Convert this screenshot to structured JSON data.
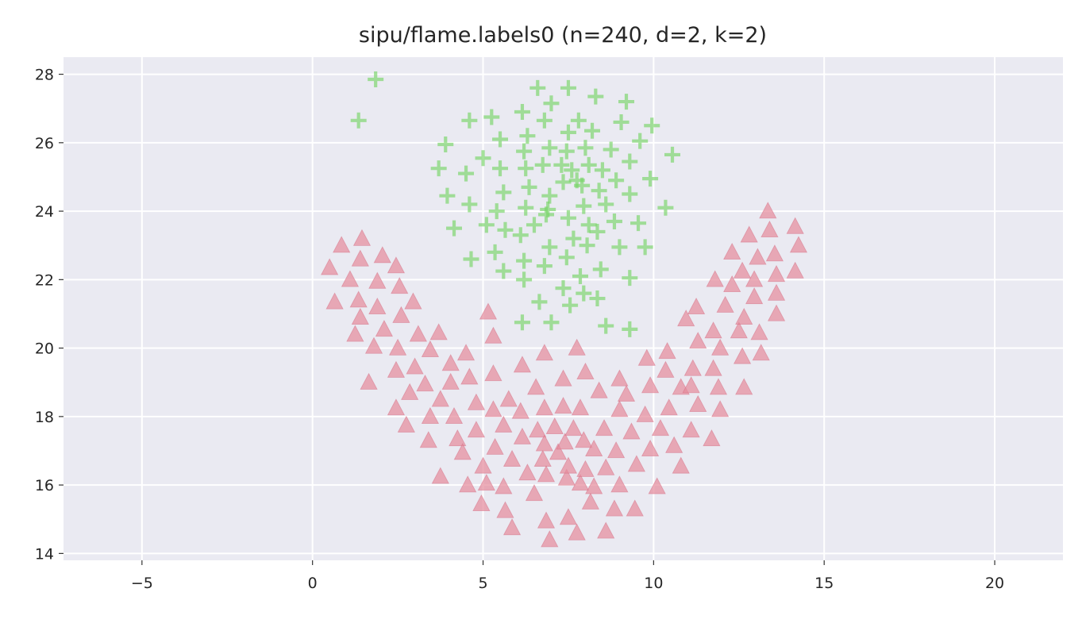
{
  "chart_data": {
    "type": "scatter",
    "title": "sipu/flame.labels0 (n=240, d=2, k=2)",
    "xlabel": "",
    "ylabel": "",
    "xlim": [
      -7.3,
      22.0
    ],
    "ylim": [
      13.8,
      28.5
    ],
    "xticks": [
      -5,
      0,
      5,
      10,
      15,
      20
    ],
    "xtick_labels": [
      "−5",
      "0",
      "5",
      "10",
      "15",
      "20"
    ],
    "yticks": [
      14,
      16,
      18,
      20,
      22,
      24,
      26,
      28
    ],
    "ytick_labels": [
      "14",
      "16",
      "18",
      "20",
      "22",
      "24",
      "26",
      "28"
    ],
    "grid": true,
    "background_color": "#eaeaf2",
    "series": [
      {
        "marker": "plus",
        "color": "#77d466",
        "points": [
          [
            1.85,
            27.85
          ],
          [
            1.35,
            26.65
          ],
          [
            6.6,
            27.6
          ],
          [
            7.5,
            27.6
          ],
          [
            7.0,
            27.15
          ],
          [
            8.3,
            27.35
          ],
          [
            9.2,
            27.2
          ],
          [
            4.6,
            26.65
          ],
          [
            5.25,
            26.75
          ],
          [
            6.15,
            26.9
          ],
          [
            6.8,
            26.65
          ],
          [
            7.8,
            26.65
          ],
          [
            8.2,
            26.35
          ],
          [
            9.05,
            26.6
          ],
          [
            9.95,
            26.5
          ],
          [
            3.9,
            25.95
          ],
          [
            5.5,
            26.1
          ],
          [
            6.3,
            26.2
          ],
          [
            7.5,
            26.3
          ],
          [
            9.6,
            26.05
          ],
          [
            10.55,
            25.65
          ],
          [
            5.0,
            25.55
          ],
          [
            6.2,
            25.75
          ],
          [
            6.95,
            25.85
          ],
          [
            7.45,
            25.75
          ],
          [
            8.0,
            25.85
          ],
          [
            8.75,
            25.8
          ],
          [
            3.7,
            25.25
          ],
          [
            4.5,
            25.1
          ],
          [
            5.5,
            25.25
          ],
          [
            6.25,
            25.25
          ],
          [
            6.75,
            25.35
          ],
          [
            7.3,
            25.35
          ],
          [
            7.6,
            25.2
          ],
          [
            8.1,
            25.35
          ],
          [
            8.5,
            25.2
          ],
          [
            9.3,
            25.45
          ],
          [
            9.9,
            24.95
          ],
          [
            7.9,
            24.75
          ],
          [
            3.95,
            24.45
          ],
          [
            4.6,
            24.2
          ],
          [
            5.6,
            24.55
          ],
          [
            6.35,
            24.7
          ],
          [
            6.95,
            24.45
          ],
          [
            7.35,
            24.85
          ],
          [
            7.75,
            24.9
          ],
          [
            8.4,
            24.6
          ],
          [
            8.9,
            24.9
          ],
          [
            9.3,
            24.5
          ],
          [
            10.35,
            24.1
          ],
          [
            5.4,
            24.0
          ],
          [
            6.25,
            24.1
          ],
          [
            6.9,
            24.05
          ],
          [
            7.5,
            23.8
          ],
          [
            7.95,
            24.15
          ],
          [
            8.6,
            24.2
          ],
          [
            4.15,
            23.5
          ],
          [
            5.1,
            23.6
          ],
          [
            5.65,
            23.45
          ],
          [
            6.1,
            23.3
          ],
          [
            6.5,
            23.6
          ],
          [
            6.85,
            23.9
          ],
          [
            7.65,
            23.2
          ],
          [
            8.1,
            23.6
          ],
          [
            8.85,
            23.7
          ],
          [
            9.55,
            23.65
          ],
          [
            8.35,
            23.4
          ],
          [
            4.65,
            22.6
          ],
          [
            5.35,
            22.8
          ],
          [
            6.2,
            22.55
          ],
          [
            6.95,
            22.95
          ],
          [
            7.45,
            22.65
          ],
          [
            8.05,
            23.0
          ],
          [
            9.0,
            22.95
          ],
          [
            9.75,
            22.95
          ],
          [
            5.6,
            22.25
          ],
          [
            6.2,
            22.0
          ],
          [
            6.8,
            22.4
          ],
          [
            7.35,
            21.75
          ],
          [
            7.85,
            22.1
          ],
          [
            8.45,
            22.3
          ],
          [
            9.3,
            22.05
          ],
          [
            6.65,
            21.35
          ],
          [
            7.55,
            21.25
          ],
          [
            7.95,
            21.6
          ],
          [
            8.35,
            21.45
          ],
          [
            6.15,
            20.75
          ],
          [
            7.0,
            20.75
          ],
          [
            8.6,
            20.65
          ],
          [
            9.3,
            20.55
          ]
        ]
      },
      {
        "marker": "triangle",
        "color": "#e58a9b",
        "points": [
          [
            0.5,
            22.35
          ],
          [
            0.85,
            23.0
          ],
          [
            1.1,
            22.0
          ],
          [
            1.4,
            22.6
          ],
          [
            1.45,
            23.2
          ],
          [
            1.9,
            21.95
          ],
          [
            2.05,
            22.7
          ],
          [
            2.45,
            22.4
          ],
          [
            0.65,
            21.35
          ],
          [
            1.35,
            21.4
          ],
          [
            1.4,
            20.9
          ],
          [
            1.9,
            21.2
          ],
          [
            2.55,
            21.8
          ],
          [
            2.95,
            21.35
          ],
          [
            2.6,
            20.95
          ],
          [
            1.25,
            20.4
          ],
          [
            1.8,
            20.05
          ],
          [
            2.1,
            20.55
          ],
          [
            2.5,
            20.0
          ],
          [
            3.1,
            20.4
          ],
          [
            3.7,
            20.45
          ],
          [
            4.5,
            19.85
          ],
          [
            1.65,
            19.0
          ],
          [
            2.45,
            19.35
          ],
          [
            3.0,
            19.45
          ],
          [
            3.45,
            19.95
          ],
          [
            3.3,
            18.95
          ],
          [
            4.05,
            19.55
          ],
          [
            2.45,
            18.25
          ],
          [
            2.85,
            18.7
          ],
          [
            3.75,
            18.5
          ],
          [
            4.05,
            19.0
          ],
          [
            4.6,
            19.15
          ],
          [
            5.3,
            19.25
          ],
          [
            2.75,
            17.75
          ],
          [
            3.45,
            18.0
          ],
          [
            4.15,
            18.0
          ],
          [
            4.8,
            18.4
          ],
          [
            5.3,
            18.2
          ],
          [
            5.75,
            18.5
          ],
          [
            6.1,
            18.15
          ],
          [
            3.4,
            17.3
          ],
          [
            4.25,
            17.35
          ],
          [
            4.8,
            17.6
          ],
          [
            5.35,
            17.1
          ],
          [
            5.6,
            17.75
          ],
          [
            6.15,
            17.4
          ],
          [
            6.6,
            17.6
          ],
          [
            3.75,
            16.25
          ],
          [
            4.4,
            16.95
          ],
          [
            5.0,
            16.55
          ],
          [
            5.85,
            16.75
          ],
          [
            6.3,
            16.35
          ],
          [
            6.75,
            16.75
          ],
          [
            7.2,
            16.95
          ],
          [
            4.55,
            16.0
          ],
          [
            5.1,
            16.05
          ],
          [
            5.6,
            15.95
          ],
          [
            6.5,
            15.75
          ],
          [
            6.85,
            16.3
          ],
          [
            7.45,
            16.2
          ],
          [
            7.85,
            16.05
          ],
          [
            4.95,
            15.45
          ],
          [
            5.65,
            15.25
          ],
          [
            5.85,
            14.75
          ],
          [
            6.85,
            14.95
          ],
          [
            6.95,
            14.4
          ],
          [
            7.5,
            15.05
          ],
          [
            7.75,
            14.6
          ],
          [
            8.15,
            15.5
          ],
          [
            8.6,
            14.65
          ],
          [
            8.85,
            15.3
          ],
          [
            9.45,
            15.3
          ],
          [
            5.15,
            21.05
          ],
          [
            5.3,
            20.35
          ],
          [
            6.15,
            19.5
          ],
          [
            6.8,
            19.85
          ],
          [
            7.75,
            20.0
          ],
          [
            7.35,
            19.1
          ],
          [
            8.0,
            19.3
          ],
          [
            6.55,
            18.85
          ],
          [
            6.8,
            18.25
          ],
          [
            7.35,
            18.3
          ],
          [
            7.85,
            18.25
          ],
          [
            8.4,
            18.75
          ],
          [
            9.0,
            19.1
          ],
          [
            9.2,
            18.65
          ],
          [
            6.8,
            17.2
          ],
          [
            7.1,
            17.7
          ],
          [
            7.4,
            17.25
          ],
          [
            7.65,
            17.65
          ],
          [
            7.95,
            17.3
          ],
          [
            8.25,
            17.05
          ],
          [
            8.55,
            17.65
          ],
          [
            8.9,
            17.0
          ],
          [
            9.35,
            17.55
          ],
          [
            9.0,
            18.2
          ],
          [
            7.5,
            16.55
          ],
          [
            8.0,
            16.45
          ],
          [
            8.6,
            16.5
          ],
          [
            9.0,
            16.0
          ],
          [
            9.5,
            16.6
          ],
          [
            8.25,
            15.95
          ],
          [
            10.1,
            15.95
          ],
          [
            9.8,
            19.7
          ],
          [
            10.4,
            19.9
          ],
          [
            9.9,
            18.9
          ],
          [
            10.35,
            19.35
          ],
          [
            10.8,
            18.85
          ],
          [
            9.75,
            18.05
          ],
          [
            10.45,
            18.25
          ],
          [
            9.9,
            17.05
          ],
          [
            10.2,
            17.65
          ],
          [
            10.6,
            17.15
          ],
          [
            10.8,
            16.55
          ],
          [
            10.95,
            20.85
          ],
          [
            11.25,
            21.2
          ],
          [
            11.3,
            20.2
          ],
          [
            11.15,
            19.4
          ],
          [
            11.1,
            18.9
          ],
          [
            11.3,
            18.35
          ],
          [
            11.1,
            17.6
          ],
          [
            11.7,
            17.35
          ],
          [
            11.75,
            19.4
          ],
          [
            11.9,
            18.85
          ],
          [
            11.95,
            18.2
          ],
          [
            11.95,
            20.0
          ],
          [
            11.75,
            20.5
          ],
          [
            11.8,
            22.0
          ],
          [
            12.1,
            21.25
          ],
          [
            12.3,
            21.85
          ],
          [
            12.3,
            22.8
          ],
          [
            12.5,
            20.5
          ],
          [
            12.6,
            22.25
          ],
          [
            12.65,
            20.9
          ],
          [
            12.6,
            19.75
          ],
          [
            12.65,
            18.85
          ],
          [
            12.8,
            23.3
          ],
          [
            12.95,
            21.5
          ],
          [
            12.95,
            22.0
          ],
          [
            13.1,
            20.45
          ],
          [
            13.05,
            22.65
          ],
          [
            13.15,
            19.85
          ],
          [
            13.35,
            24.0
          ],
          [
            13.4,
            23.45
          ],
          [
            13.55,
            22.75
          ],
          [
            13.6,
            22.15
          ],
          [
            13.6,
            21.6
          ],
          [
            13.6,
            21.0
          ],
          [
            14.15,
            23.55
          ],
          [
            14.25,
            23.0
          ],
          [
            14.15,
            22.25
          ]
        ]
      }
    ]
  }
}
